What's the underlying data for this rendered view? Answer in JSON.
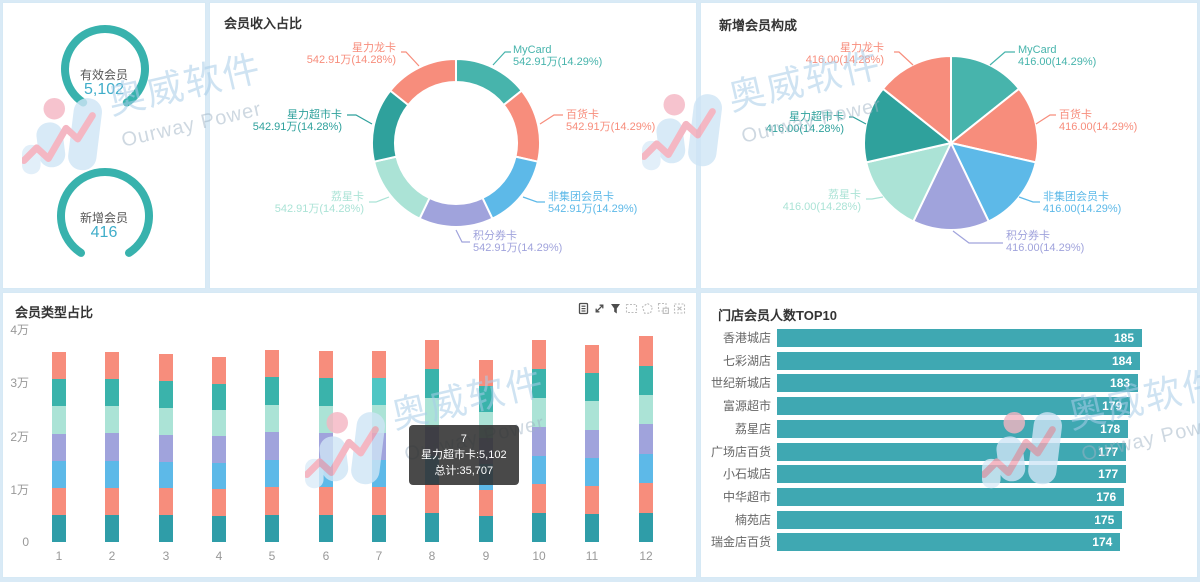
{
  "watermark": {
    "cjk": "奥威软件",
    "latin": "Ourway Power"
  },
  "kpi": {
    "arc_color": "#38b2ad",
    "value_color": "#3fadc9",
    "items": [
      {
        "label": "有效会员",
        "value": "5,102"
      },
      {
        "label": "新增会员",
        "value": "416"
      }
    ]
  },
  "toolbox": {
    "icons": [
      "data-view",
      "restore",
      "filter",
      "brush-rect",
      "brush-polygon",
      "brush-keep",
      "brush-clear"
    ]
  },
  "chart_data": [
    {
      "type": "pie",
      "variant": "donut",
      "title": "会员收入占比",
      "unit": "万",
      "series": [
        {
          "name": "MyCard",
          "value": 542.91,
          "pct": 14.29,
          "label": "542.91万(14.29%)",
          "color": "#47b4ac"
        },
        {
          "name": "百货卡",
          "value": 542.91,
          "pct": 14.29,
          "label": "542.91万(14.29%)",
          "color": "#f78d7c"
        },
        {
          "name": "非集团会员卡",
          "value": 542.91,
          "pct": 14.29,
          "label": "542.91万(14.29%)",
          "color": "#5db9e8"
        },
        {
          "name": "积分券卡",
          "value": 542.91,
          "pct": 14.29,
          "label": "542.91万(14.29%)",
          "color": "#a0a3dc"
        },
        {
          "name": "荔星卡",
          "value": 542.91,
          "pct": 14.28,
          "label": "542.91万(14.28%)",
          "color": "#abe3d6"
        },
        {
          "name": "星力超市卡",
          "value": 542.91,
          "pct": 14.28,
          "label": "542.91万(14.28%)",
          "color": "#2fa19c"
        },
        {
          "name": "星力龙卡",
          "value": 542.91,
          "pct": 14.28,
          "label": "542.91万(14.28%)",
          "color": "#f78d7c"
        }
      ]
    },
    {
      "type": "pie",
      "title": "新增会员构成",
      "series": [
        {
          "name": "MyCard",
          "value": 416.0,
          "pct": 14.29,
          "label": "416.00(14.29%)",
          "color": "#47b4ac"
        },
        {
          "name": "百货卡",
          "value": 416.0,
          "pct": 14.29,
          "label": "416.00(14.29%)",
          "color": "#f78d7c"
        },
        {
          "name": "非集团会员卡",
          "value": 416.0,
          "pct": 14.29,
          "label": "416.00(14.29%)",
          "color": "#5db9e8"
        },
        {
          "name": "积分券卡",
          "value": 416.0,
          "pct": 14.29,
          "label": "416.00(14.29%)",
          "color": "#a0a3dc"
        },
        {
          "name": "荔星卡",
          "value": 416.0,
          "pct": 14.28,
          "label": "416.00(14.28%)",
          "color": "#abe3d6"
        },
        {
          "name": "星力超市卡",
          "value": 416.0,
          "pct": 14.28,
          "label": "416.00(14.28%)",
          "color": "#2fa19c"
        },
        {
          "name": "星力龙卡",
          "value": 416.0,
          "pct": 14.28,
          "label": "416.00(14.28%)",
          "color": "#f78d7c"
        }
      ]
    },
    {
      "type": "bar",
      "variant": "stacked",
      "title": "会员类型占比",
      "categories": [
        "1",
        "2",
        "3",
        "4",
        "5",
        "6",
        "7",
        "8",
        "9",
        "10",
        "11",
        "12"
      ],
      "y_ticks": [
        "0",
        "1万",
        "2万",
        "3万",
        "4万"
      ],
      "y_max": 40000,
      "totals": [
        35400,
        35450,
        35000,
        34450,
        35900,
        35600,
        35707,
        37600,
        33900,
        37600,
        36700,
        38400
      ],
      "stack": [
        {
          "name": "MyCard",
          "color": "#2f9da8"
        },
        {
          "name": "百货卡",
          "color": "#f78d7c"
        },
        {
          "name": "非集团会员卡",
          "color": "#5db9e8"
        },
        {
          "name": "积分券卡",
          "color": "#a0a3dc"
        },
        {
          "name": "荔星卡",
          "color": "#abe3d6"
        },
        {
          "name": "星力超市卡",
          "color": "#3ab3ab"
        },
        {
          "name": "星力龙卡",
          "color": "#f78d7c"
        }
      ],
      "hover": {
        "category": "7",
        "series": "星力超市卡",
        "value": "5,102",
        "total": "35,707",
        "highlight_color": "#4fc6c4"
      },
      "tooltip": [
        "7",
        "星力超市卡:5,102",
        "总计:35,707"
      ]
    },
    {
      "type": "bar",
      "variant": "horizontal",
      "title": "门店会员人数TOP10",
      "categories": [
        "香港城店",
        "七彩湖店",
        "世纪新城店",
        "富源超市",
        "荔星店",
        "广场店百货",
        "小石城店",
        "中华超市",
        "楠苑店",
        "瑞金店百货"
      ],
      "values": [
        185,
        184,
        183,
        179,
        178,
        177,
        177,
        176,
        175,
        174
      ],
      "x_max": 185,
      "bar_color": "#3fa8b2"
    }
  ]
}
